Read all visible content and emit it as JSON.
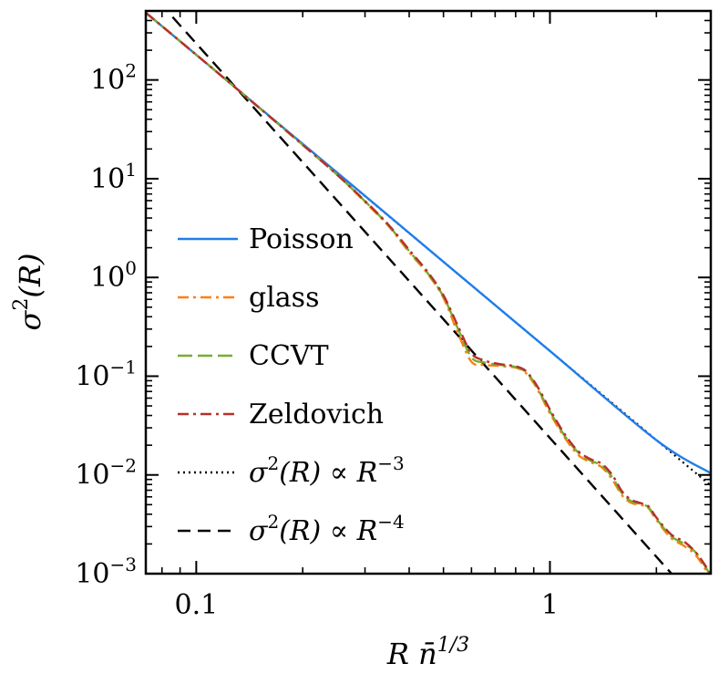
{
  "chart_data": {
    "type": "line",
    "xscale": "log",
    "yscale": "log",
    "xlim": [
      0.072,
      2.85
    ],
    "ylim": [
      0.001,
      500
    ],
    "xlabel": {
      "base": "R n̄",
      "sup": "1/3"
    },
    "ylabel": {
      "base": "σ",
      "sup": "2",
      "rest": "(R)"
    },
    "xticks": [
      {
        "value": 0.1,
        "label": "0.1"
      },
      {
        "value": 1,
        "label": "1"
      }
    ],
    "yticks": [
      {
        "value": 0.001,
        "base": "10",
        "exp": "−3"
      },
      {
        "value": 0.01,
        "base": "10",
        "exp": "−2"
      },
      {
        "value": 0.1,
        "base": "10",
        "exp": "−1"
      },
      {
        "value": 1,
        "base": "10",
        "exp": "0"
      },
      {
        "value": 10,
        "base": "10",
        "exp": "1"
      },
      {
        "value": 100,
        "base": "10",
        "exp": "2"
      }
    ],
    "series": [
      {
        "name": "Poisson",
        "color": "#1f7ee8",
        "style": "solid",
        "x": [
          0.072,
          0.1,
          0.2,
          0.3,
          0.5,
          1.0,
          2.0,
          2.85
        ],
        "y": [
          480,
          180,
          22.5,
          6.7,
          1.44,
          0.18,
          0.0225,
          0.0104
        ]
      },
      {
        "name": "glass",
        "color": "#ff7f0e",
        "style": "dashdot",
        "x": [
          0.072,
          0.1,
          0.15,
          0.2,
          0.25,
          0.3,
          0.35,
          0.4,
          0.45,
          0.5,
          0.55,
          0.6,
          0.65,
          0.7,
          0.75,
          0.8,
          0.85,
          0.9,
          0.95,
          1.0,
          1.1,
          1.2,
          1.3,
          1.4,
          1.5,
          1.6,
          1.7,
          1.8,
          1.9,
          2.0,
          2.2,
          2.4,
          2.6,
          2.85
        ],
        "y": [
          480,
          180,
          53,
          22,
          11,
          5.8,
          3.3,
          1.8,
          1.1,
          0.62,
          0.27,
          0.14,
          0.13,
          0.128,
          0.125,
          0.122,
          0.11,
          0.085,
          0.06,
          0.042,
          0.024,
          0.016,
          0.0135,
          0.012,
          0.009,
          0.0062,
          0.0052,
          0.005,
          0.0046,
          0.0035,
          0.0023,
          0.0019,
          0.0015,
          0.0009
        ]
      },
      {
        "name": "CCVT",
        "color": "#77ac30",
        "style": "longdash",
        "x": [
          0.072,
          0.1,
          0.15,
          0.2,
          0.25,
          0.3,
          0.35,
          0.4,
          0.45,
          0.5,
          0.55,
          0.6,
          0.65,
          0.7,
          0.75,
          0.8,
          0.85,
          0.9,
          0.95,
          1.0,
          1.1,
          1.2,
          1.3,
          1.4,
          1.5,
          1.6,
          1.7,
          1.8,
          1.9,
          2.0,
          2.2,
          2.4,
          2.6,
          2.85
        ],
        "y": [
          480,
          180,
          53,
          22,
          11,
          5.9,
          3.35,
          1.85,
          1.12,
          0.64,
          0.3,
          0.155,
          0.138,
          0.132,
          0.128,
          0.124,
          0.112,
          0.088,
          0.062,
          0.044,
          0.025,
          0.017,
          0.014,
          0.0125,
          0.0095,
          0.0065,
          0.0054,
          0.0051,
          0.0047,
          0.0036,
          0.0024,
          0.002,
          0.0016,
          0.00095
        ]
      },
      {
        "name": "Zeldovich",
        "color": "#b5312b",
        "style": "dashdot",
        "x": [
          0.072,
          0.1,
          0.15,
          0.2,
          0.25,
          0.3,
          0.35,
          0.4,
          0.45,
          0.5,
          0.55,
          0.6,
          0.65,
          0.7,
          0.75,
          0.8,
          0.85,
          0.9,
          0.95,
          1.0,
          1.1,
          1.2,
          1.3,
          1.4,
          1.5,
          1.6,
          1.7,
          1.8,
          1.9,
          2.0,
          2.2,
          2.4,
          2.6,
          2.85
        ],
        "y": [
          480,
          180,
          53,
          22,
          11,
          5.95,
          3.4,
          1.9,
          1.15,
          0.66,
          0.32,
          0.17,
          0.145,
          0.135,
          0.13,
          0.126,
          0.115,
          0.09,
          0.065,
          0.046,
          0.026,
          0.0175,
          0.0145,
          0.013,
          0.01,
          0.0068,
          0.0056,
          0.0052,
          0.0048,
          0.0037,
          0.0025,
          0.0021,
          0.0016,
          0.001
        ]
      },
      {
        "name": "σ²(R) ∝ R⁻³",
        "color": "#000000",
        "style": "dotted",
        "x": [
          0.072,
          2.85
        ],
        "y": [
          480,
          0.0078
        ]
      },
      {
        "name": "σ²(R) ∝ R⁻⁴",
        "color": "#000000",
        "style": "dashed",
        "x": [
          0.072,
          2.85
        ],
        "y": [
          870,
          0.00036
        ]
      }
    ],
    "legend": {
      "position": "center-left",
      "entries": [
        {
          "label": "Poisson",
          "color": "#1f7ee8",
          "style": "solid"
        },
        {
          "label": "glass",
          "color": "#ff7f0e",
          "style": "dashdot"
        },
        {
          "label": "CCVT",
          "color": "#77ac30",
          "style": "longdash"
        },
        {
          "label": "Zeldovich",
          "color": "#b5312b",
          "style": "dashdot"
        },
        {
          "label_parts": [
            "σ",
            "2",
            "(R) ∝ R",
            "−3"
          ],
          "color": "#000000",
          "style": "dotted"
        },
        {
          "label_parts": [
            "σ",
            "2",
            "(R) ∝ R",
            "−4"
          ],
          "color": "#000000",
          "style": "dashed"
        }
      ]
    }
  }
}
